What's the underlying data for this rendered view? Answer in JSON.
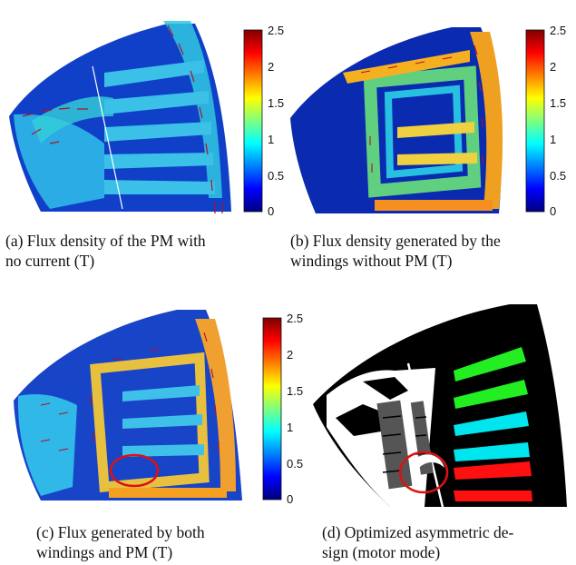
{
  "colorbar": {
    "ticks": [
      "2.5",
      "2",
      "1.5",
      "1",
      "0.5",
      "0"
    ],
    "min": 0,
    "max": 2.5,
    "colormap": "jet"
  },
  "panels": [
    {
      "id": "a",
      "caption_line1": "(a) Flux density of the PM with",
      "caption_line2": "no current (T)"
    },
    {
      "id": "b",
      "caption_line1": "(b) Flux density generated by the",
      "caption_line2": "windings without PM (T)"
    },
    {
      "id": "c",
      "caption_line1": "(c) Flux generated by both",
      "caption_line2": "windings and PM (T)"
    },
    {
      "id": "d",
      "caption_line1": "(d) Optimized asymmetric de-",
      "caption_line2": "sign (motor mode)"
    }
  ],
  "colors": {
    "slot_green": "#22ee22",
    "slot_cyan": "#00e5ee",
    "slot_red": "#ff1010",
    "magnet_gray": "#555555",
    "highlight_circle": "#dd1111",
    "arrow": "#b0102a"
  }
}
